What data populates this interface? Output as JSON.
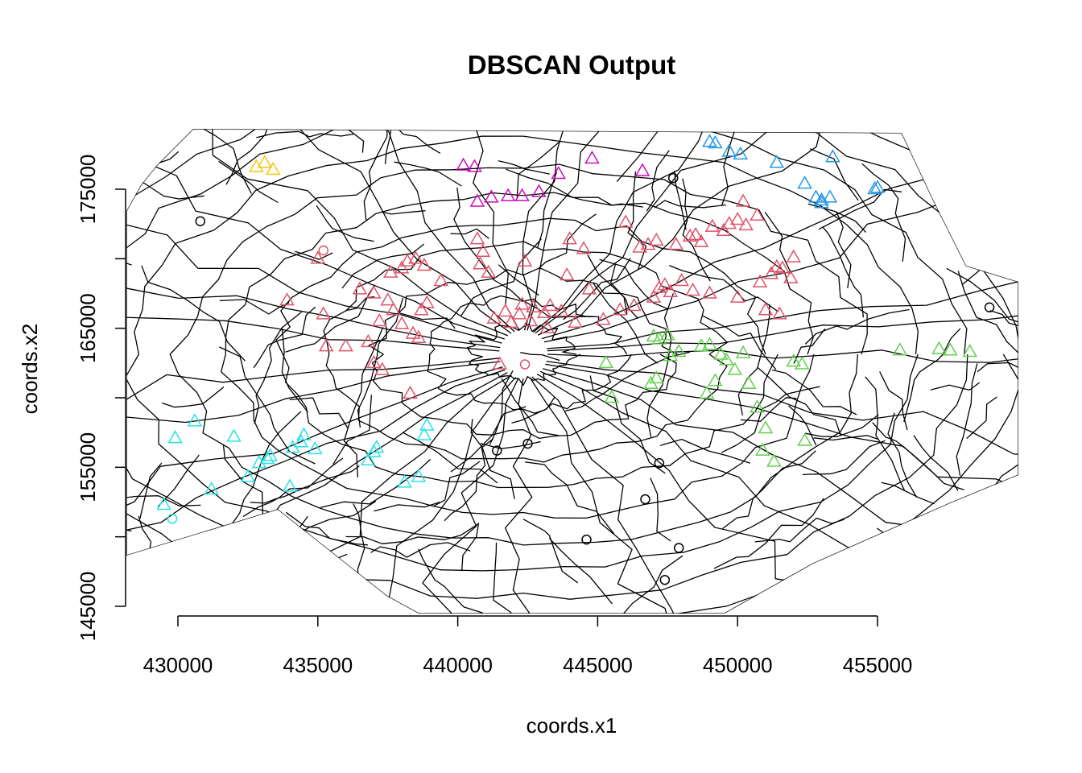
{
  "chart_data": {
    "type": "scatter",
    "title": "DBSCAN Output",
    "xlabel": "coords.x1",
    "ylabel": "coords.x2",
    "x_ticks": [
      430000,
      435000,
      440000,
      445000,
      450000,
      455000
    ],
    "y_ticks": [
      145000,
      155000,
      165000,
      175000
    ],
    "xlim": [
      428000,
      460000
    ],
    "ylim": [
      145000,
      180000
    ],
    "grid": false,
    "legend": "none",
    "background": "ward boundary polygons (black outlines)",
    "marker_legend": {
      "triangle": "clustered point",
      "circle": "noise point"
    },
    "series": [
      {
        "color": "#DF536B",
        "marker": "triangle",
        "points": [
          [
            433900,
            167000
          ],
          [
            435200,
            166000
          ],
          [
            435300,
            163700
          ],
          [
            436000,
            163700
          ],
          [
            436800,
            164000
          ],
          [
            437000,
            162500
          ],
          [
            437300,
            162000
          ],
          [
            436500,
            167800
          ],
          [
            437000,
            167500
          ],
          [
            437500,
            167000
          ],
          [
            437700,
            166300
          ],
          [
            437200,
            165500
          ],
          [
            438000,
            165300
          ],
          [
            438400,
            164600
          ],
          [
            438600,
            164300
          ],
          [
            438300,
            160300
          ],
          [
            435000,
            170000
          ],
          [
            437600,
            169000
          ],
          [
            438000,
            169300
          ],
          [
            438200,
            169800
          ],
          [
            438500,
            170000
          ],
          [
            438800,
            169500
          ],
          [
            438900,
            166800
          ],
          [
            438700,
            166300
          ],
          [
            439400,
            168400
          ],
          [
            440700,
            171400
          ],
          [
            440900,
            170500
          ],
          [
            440800,
            169600
          ],
          [
            441100,
            169000
          ],
          [
            441700,
            166200
          ],
          [
            441300,
            165700
          ],
          [
            441900,
            165400
          ],
          [
            442200,
            166000
          ],
          [
            442300,
            166700
          ],
          [
            442700,
            166500
          ],
          [
            442600,
            165500
          ],
          [
            443100,
            166100
          ],
          [
            443200,
            165000
          ],
          [
            443300,
            166600
          ],
          [
            443700,
            166200
          ],
          [
            444200,
            165400
          ],
          [
            444700,
            167800
          ],
          [
            443900,
            168800
          ],
          [
            444500,
            170700
          ],
          [
            444000,
            171400
          ],
          [
            445200,
            165600
          ],
          [
            445800,
            166300
          ],
          [
            446300,
            166600
          ],
          [
            446500,
            170800
          ],
          [
            446800,
            171000
          ],
          [
            447000,
            167200
          ],
          [
            447200,
            167900
          ],
          [
            447400,
            168100
          ],
          [
            447600,
            167600
          ],
          [
            447100,
            171300
          ],
          [
            447800,
            171000
          ],
          [
            448000,
            168400
          ],
          [
            448400,
            167700
          ],
          [
            448300,
            171600
          ],
          [
            448500,
            171700
          ],
          [
            448700,
            171200
          ],
          [
            449100,
            172300
          ],
          [
            449500,
            172000
          ],
          [
            449700,
            172500
          ],
          [
            450000,
            172800
          ],
          [
            450300,
            172400
          ],
          [
            450200,
            174100
          ],
          [
            450700,
            173100
          ],
          [
            449000,
            167500
          ],
          [
            450000,
            167200
          ],
          [
            450800,
            168300
          ],
          [
            451200,
            168900
          ],
          [
            451600,
            169300
          ],
          [
            451900,
            168600
          ],
          [
            452000,
            170100
          ],
          [
            451400,
            169400
          ],
          [
            451500,
            166000
          ],
          [
            451000,
            166300
          ],
          [
            446000,
            172600
          ],
          [
            442400,
            169800
          ],
          [
            441500,
            162400
          ]
        ]
      },
      {
        "color": "#61D04F",
        "marker": "triangle",
        "points": [
          [
            445300,
            162500
          ],
          [
            445500,
            160000
          ],
          [
            447100,
            161400
          ],
          [
            447200,
            164200
          ],
          [
            447500,
            164500
          ],
          [
            447600,
            163000
          ],
          [
            447900,
            163300
          ],
          [
            448700,
            163700
          ],
          [
            448900,
            160300
          ],
          [
            449000,
            163800
          ],
          [
            449200,
            161200
          ],
          [
            449400,
            163100
          ],
          [
            449600,
            162700
          ],
          [
            449900,
            162000
          ],
          [
            450200,
            163200
          ],
          [
            450400,
            161000
          ],
          [
            450700,
            159300
          ],
          [
            451000,
            157800
          ],
          [
            450900,
            156200
          ],
          [
            451300,
            155400
          ],
          [
            452000,
            162600
          ],
          [
            452300,
            162400
          ],
          [
            452400,
            156900
          ],
          [
            455800,
            163400
          ],
          [
            457200,
            163500
          ],
          [
            457600,
            163400
          ],
          [
            458300,
            163300
          ],
          [
            446900,
            161000
          ],
          [
            447000,
            164400
          ]
        ]
      },
      {
        "color": "#2297E6",
        "marker": "triangle",
        "points": [
          [
            449000,
            178400
          ],
          [
            449200,
            178300
          ],
          [
            449700,
            177700
          ],
          [
            450100,
            177500
          ],
          [
            451400,
            176900
          ],
          [
            452400,
            175400
          ],
          [
            452800,
            174400
          ],
          [
            453000,
            174200
          ],
          [
            453000,
            174000
          ],
          [
            453300,
            174400
          ],
          [
            453400,
            177300
          ],
          [
            454900,
            175000
          ],
          [
            455000,
            175100
          ]
        ]
      },
      {
        "color": "#28E2E5",
        "marker": "triangle",
        "points": [
          [
            429500,
            152300
          ],
          [
            429900,
            157100
          ],
          [
            430600,
            158300
          ],
          [
            432000,
            157200
          ],
          [
            432500,
            154300
          ],
          [
            432900,
            155300
          ],
          [
            433200,
            155600
          ],
          [
            433300,
            155800
          ],
          [
            434000,
            153600
          ],
          [
            434100,
            156400
          ],
          [
            434400,
            156800
          ],
          [
            434500,
            157300
          ],
          [
            434900,
            156300
          ],
          [
            436800,
            155500
          ],
          [
            437000,
            156100
          ],
          [
            437100,
            156400
          ],
          [
            438100,
            153900
          ],
          [
            438600,
            154300
          ],
          [
            438800,
            157300
          ],
          [
            438900,
            158000
          ],
          [
            431200,
            153400
          ]
        ]
      },
      {
        "color": "#CD0BBC",
        "marker": "triangle",
        "points": [
          [
            440200,
            176700
          ],
          [
            440600,
            176600
          ],
          [
            440700,
            174100
          ],
          [
            441200,
            174400
          ],
          [
            441800,
            174500
          ],
          [
            442300,
            174500
          ],
          [
            442900,
            174800
          ],
          [
            443600,
            176100
          ],
          [
            444800,
            177200
          ],
          [
            446600,
            176300
          ]
        ]
      },
      {
        "color": "#F5C710",
        "marker": "triangle",
        "points": [
          [
            432800,
            176600
          ],
          [
            433100,
            176900
          ],
          [
            433400,
            176400
          ]
        ]
      },
      {
        "color": "#000000",
        "marker": "circle",
        "points": [
          [
            430800,
            172700
          ],
          [
            441400,
            156200
          ],
          [
            442500,
            156700
          ],
          [
            444600,
            149800
          ],
          [
            446700,
            152700
          ],
          [
            447200,
            155300
          ],
          [
            447900,
            149200
          ],
          [
            447400,
            146900
          ],
          [
            459000,
            166500
          ],
          [
            447700,
            175800
          ]
        ]
      },
      {
        "color": "#DF536B",
        "marker": "circle",
        "points": [
          [
            435200,
            170600
          ],
          [
            442400,
            162400
          ]
        ]
      },
      {
        "color": "#28E2E5",
        "marker": "circle",
        "points": [
          [
            429800,
            151300
          ]
        ]
      }
    ]
  }
}
